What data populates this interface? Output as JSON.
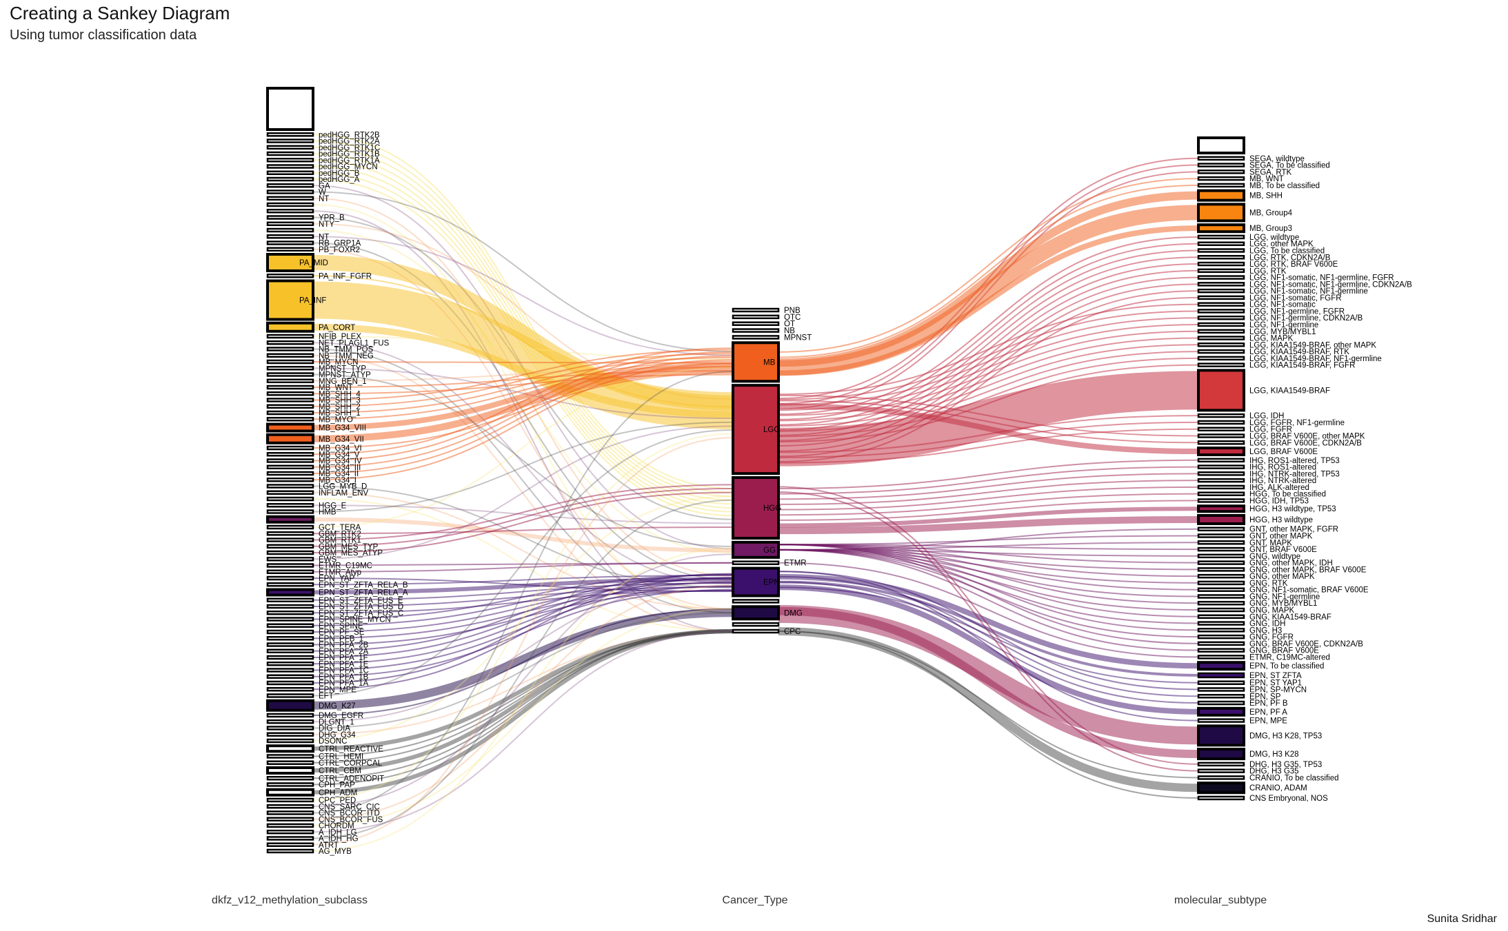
{
  "title": "Creating a Sankey Diagram",
  "subtitle": "Using tumor classification data",
  "caption": "Sunita Sridhar",
  "axes": [
    "dkfz_v12_methylation_subclass",
    "Cancer_Type",
    "molecular_subtype"
  ],
  "colors": {
    "PA": "#f7c12a",
    "MB": "#f05f1e",
    "LGG": "#c02a3e",
    "HGG": "#9b1d4e",
    "GG": "#6f1a63",
    "EPN": "#3b0f6c",
    "DMG": "#1f0a45",
    "OTHER": "#4a4a4a"
  },
  "chart_data": {
    "type": "sankey",
    "columns": [
      {
        "name": "dkfz_v12_methylation_subclass",
        "nodes": [
          {
            "label": "",
            "h": 60,
            "fill": "#ffffff"
          },
          {
            "label": "pedHGG_RTK2B",
            "h": 4
          },
          {
            "label": "pedHGG_RTK2A",
            "h": 4
          },
          {
            "label": "pedHGG_RTK1C",
            "h": 4
          },
          {
            "label": "pedHGG_RTK1B",
            "h": 4
          },
          {
            "label": "pedHGG_RTK1A",
            "h": 4
          },
          {
            "label": "pedHGG_MYCN",
            "h": 4
          },
          {
            "label": "pedHGG_B",
            "h": 4
          },
          {
            "label": "pedHGG_A",
            "h": 4
          },
          {
            "label": "GA",
            "h": 4
          },
          {
            "label": "W",
            "h": 4
          },
          {
            "label": "NT",
            "h": 4
          },
          {
            "label": "",
            "h": 4
          },
          {
            "label": "",
            "h": 4
          },
          {
            "label": "YPR_B",
            "h": 4
          },
          {
            "label": "NTY",
            "h": 4
          },
          {
            "label": "",
            "h": 4
          },
          {
            "label": "NT",
            "h": 4
          },
          {
            "label": "RB_GRP1A",
            "h": 4
          },
          {
            "label": "PB_FOXR2",
            "h": 4
          },
          {
            "label": "PA_MID",
            "h": 24,
            "fill": "#f7c12a"
          },
          {
            "label": "PA_INF_FGFR",
            "h": 4
          },
          {
            "label": "PA_INF",
            "h": 56,
            "fill": "#f7c12a"
          },
          {
            "label": "PA_CORT",
            "h": 12,
            "fill": "#f7c12a"
          },
          {
            "label": "NFIB_PLEX",
            "h": 4
          },
          {
            "label": "NET_PLAGL1_FUS",
            "h": 4
          },
          {
            "label": "NB_TMM_POS",
            "h": 4
          },
          {
            "label": "NB_TMM_NEG",
            "h": 4
          },
          {
            "label": "MB_MYCN",
            "h": 4
          },
          {
            "label": "MPNST_TYP",
            "h": 4
          },
          {
            "label": "MPNST_ATYP",
            "h": 4
          },
          {
            "label": "MNG_BEN_1",
            "h": 4
          },
          {
            "label": "MB_WNT",
            "h": 4
          },
          {
            "label": "MB_SHH_4",
            "h": 4
          },
          {
            "label": "MB_SHH_3",
            "h": 4
          },
          {
            "label": "MB_SHH_2",
            "h": 4
          },
          {
            "label": "MB_SHH_1",
            "h": 4
          },
          {
            "label": "MB_MYO",
            "h": 4
          },
          {
            "label": "MB_G34_VIII",
            "h": 10,
            "fill": "#f05f1e"
          },
          {
            "label": "MB_G34_VII",
            "h": 12,
            "fill": "#f05f1e"
          },
          {
            "label": "MB_G34_VI",
            "h": 4
          },
          {
            "label": "MB_G34_V",
            "h": 4
          },
          {
            "label": "MB_G34_IV",
            "h": 4
          },
          {
            "label": "MB_G34_III",
            "h": 4
          },
          {
            "label": "MB_G34_II",
            "h": 4
          },
          {
            "label": "MB_G34_I",
            "h": 4
          },
          {
            "label": "LGG_MYB_D",
            "h": 4
          },
          {
            "label": "INFLAM_ENV",
            "h": 4
          },
          {
            "label": "",
            "h": 4
          },
          {
            "label": "HGG_E",
            "h": 4
          },
          {
            "label": "HMB",
            "h": 4
          },
          {
            "label": "",
            "h": 8,
            "fill": "#6f1a63"
          },
          {
            "label": "GCT_TERA",
            "h": 4
          },
          {
            "label": "GBM_RTK2",
            "h": 4
          },
          {
            "label": "GBM_RTK1",
            "h": 4
          },
          {
            "label": "GBM_MES_TYP",
            "h": 4
          },
          {
            "label": "GBM_MES_ATYP",
            "h": 4
          },
          {
            "label": "EWS",
            "h": 4
          },
          {
            "label": "ETMR_C19MC",
            "h": 4
          },
          {
            "label": "ETMR_Atyp",
            "h": 4
          },
          {
            "label": "EPN_YAP",
            "h": 4
          },
          {
            "label": "EPN_ST_ZFTA_RELA_B",
            "h": 4
          },
          {
            "label": "EPN_ST_ZFTA_RELA_A",
            "h": 8,
            "fill": "#3b0f6c"
          },
          {
            "label": "EPN_ST_ZFTA_FUS_E",
            "h": 4
          },
          {
            "label": "EPN_ST_ZFTA_FUS_D",
            "h": 4
          },
          {
            "label": "EPN_ST_ZFTA_FUS_C",
            "h": 4
          },
          {
            "label": "EPN_SPINE_MYCN",
            "h": 4
          },
          {
            "label": "EPN_SPINE",
            "h": 4
          },
          {
            "label": "EPN_PF_SE",
            "h": 4
          },
          {
            "label": "EPN_PFB_1",
            "h": 4
          },
          {
            "label": "EPN_PFA_2B",
            "h": 4
          },
          {
            "label": "EPN_PFA_2A",
            "h": 4
          },
          {
            "label": "EPN_PFA_1F",
            "h": 4
          },
          {
            "label": "EPN_PFA_1E",
            "h": 4
          },
          {
            "label": "EPN_PFA_1C",
            "h": 4
          },
          {
            "label": "EPN_PFA_1B",
            "h": 4
          },
          {
            "label": "EPN_PFA_1A",
            "h": 4
          },
          {
            "label": "EPN_MPE",
            "h": 4
          },
          {
            "label": "EFT",
            "h": 4
          },
          {
            "label": "DMG_K27",
            "h": 14,
            "fill": "#1f0a45"
          },
          {
            "label": "DMG_EGFR",
            "h": 4
          },
          {
            "label": "DLGNT_1",
            "h": 4
          },
          {
            "label": "DIG_DIA",
            "h": 4
          },
          {
            "label": "DHG_G34",
            "h": 4
          },
          {
            "label": "DSONC",
            "h": 4
          },
          {
            "label": "CTRL_REACTIVE",
            "h": 8
          },
          {
            "label": "CTRL_HEMI",
            "h": 4
          },
          {
            "label": "CTRL_CORPCAL",
            "h": 4
          },
          {
            "label": "CTRL_CBM",
            "h": 8
          },
          {
            "label": "CTRL_ADENOPIT",
            "h": 4
          },
          {
            "label": "CPH_PAP",
            "h": 4
          },
          {
            "label": "CPH_ADM",
            "h": 8
          },
          {
            "label": "CPC_PED",
            "h": 4
          },
          {
            "label": "CNS_SARC_CIC",
            "h": 4
          },
          {
            "label": "CNS_BCOR_ITD",
            "h": 4
          },
          {
            "label": "CNS_BCOR_FUS",
            "h": 4
          },
          {
            "label": "CHORDM",
            "h": 4
          },
          {
            "label": "A_IDH_LG",
            "h": 4
          },
          {
            "label": "A_IDH_HG",
            "h": 4
          },
          {
            "label": "ATRT",
            "h": 4
          },
          {
            "label": "AG_MYB",
            "h": 4
          }
        ]
      },
      {
        "name": "Cancer_Type",
        "nodes": [
          {
            "label": "PNB",
            "h": 4
          },
          {
            "label": "OTC",
            "h": 4
          },
          {
            "label": "OT",
            "h": 4
          },
          {
            "label": "NB",
            "h": 4
          },
          {
            "label": "MPNST",
            "h": 4
          },
          {
            "label": "MB",
            "h": 56,
            "fill": "#f05f1e"
          },
          {
            "label": "LGG",
            "h": 128,
            "fill": "#c02a3e"
          },
          {
            "label": "HGG",
            "h": 88,
            "fill": "#9b1d4e"
          },
          {
            "label": "GG",
            "h": 22,
            "fill": "#6f1a63"
          },
          {
            "label": "ETMR",
            "h": 4
          },
          {
            "label": "EPN",
            "h": 40,
            "fill": "#3b0f6c"
          },
          {
            "label": "",
            "h": 4
          },
          {
            "label": "DMG",
            "h": 18,
            "fill": "#1f0a45"
          },
          {
            "label": "",
            "h": 4
          },
          {
            "label": "CPC",
            "h": 4
          }
        ]
      },
      {
        "name": "molecular_subtype",
        "nodes": [
          {
            "label": "",
            "h": 22,
            "fill": "#ffffff"
          },
          {
            "label": "SEGA, wildtype",
            "h": 4
          },
          {
            "label": "SEGA, To be classified",
            "h": 4
          },
          {
            "label": "SEGA, RTK",
            "h": 4
          },
          {
            "label": "MB, WNT",
            "h": 4
          },
          {
            "label": "MB, To be classified",
            "h": 4
          },
          {
            "label": "MB, SHH",
            "h": 14,
            "fill": "#f7850f"
          },
          {
            "label": "MB, Group4",
            "h": 24,
            "fill": "#f7850f"
          },
          {
            "label": "MB, Group3",
            "h": 10,
            "fill": "#f7850f"
          },
          {
            "label": "LGG, wildtype",
            "h": 4
          },
          {
            "label": "LGG, other MAPK",
            "h": 4
          },
          {
            "label": "LGG, To be classified",
            "h": 4
          },
          {
            "label": "LGG, RTK, CDKN2A/B",
            "h": 4
          },
          {
            "label": "LGG, RTK, BRAF V600E",
            "h": 4
          },
          {
            "label": "LGG, RTK",
            "h": 4
          },
          {
            "label": "LGG, NF1-somatic, NF1-germline, FGFR",
            "h": 4
          },
          {
            "label": "LGG, NF1-somatic, NF1-germline, CDKN2A/B",
            "h": 4
          },
          {
            "label": "LGG, NF1-somatic, NF1-germline",
            "h": 4
          },
          {
            "label": "LGG, NF1-somatic, FGFR",
            "h": 4
          },
          {
            "label": "LGG, NF1-somatic",
            "h": 4
          },
          {
            "label": "LGG, NF1-germline, FGFR",
            "h": 4
          },
          {
            "label": "LGG, NF1-germline, CDKN2A/B",
            "h": 4
          },
          {
            "label": "LGG, NF1-germline",
            "h": 4
          },
          {
            "label": "LGG, MYB/MYBL1",
            "h": 4
          },
          {
            "label": "LGG, MAPK",
            "h": 4
          },
          {
            "label": "LGG, KIAA1549-BRAF, other MAPK",
            "h": 4
          },
          {
            "label": "LGG, KIAA1549-BRAF, RTK",
            "h": 4
          },
          {
            "label": "LGG, KIAA1549-BRAF, NF1-germline",
            "h": 4
          },
          {
            "label": "LGG, KIAA1549-BRAF, FGFR",
            "h": 4
          },
          {
            "label": "LGG, KIAA1549-BRAF",
            "h": 58,
            "fill": "#d3383a"
          },
          {
            "label": "LGG, IDH",
            "h": 4
          },
          {
            "label": "LGG, FGFR, NF1-germline",
            "h": 4
          },
          {
            "label": "LGG, FGFR",
            "h": 4
          },
          {
            "label": "LGG, BRAF V600E, other MAPK",
            "h": 4
          },
          {
            "label": "LGG, BRAF V600E, CDKN2A/B",
            "h": 4
          },
          {
            "label": "LGG, BRAF V600E",
            "h": 10,
            "fill": "#c02a3e"
          },
          {
            "label": "IHG, ROS1-altered, TP53",
            "h": 4
          },
          {
            "label": "IHG, ROS1-altered",
            "h": 4
          },
          {
            "label": "IHG, NTRK-altered, TP53",
            "h": 4
          },
          {
            "label": "IHG, NTRK-altered",
            "h": 4
          },
          {
            "label": "IHG, ALK-altered",
            "h": 4
          },
          {
            "label": "HGG, To be classified",
            "h": 4
          },
          {
            "label": "HGG, IDH, TP53",
            "h": 4
          },
          {
            "label": "HGG, H3 wildtype, TP53",
            "h": 8,
            "fill": "#9b1d4e"
          },
          {
            "label": "HGG, H3 wildtype",
            "h": 12,
            "fill": "#9b1d4e"
          },
          {
            "label": "GNT, other MAPK, FGFR",
            "h": 4
          },
          {
            "label": "GNT, other MAPK",
            "h": 4
          },
          {
            "label": "GNT, MAPK",
            "h": 4
          },
          {
            "label": "GNT, BRAF V600E",
            "h": 4
          },
          {
            "label": "GNG, wildtype",
            "h": 4
          },
          {
            "label": "GNG, other MAPK, IDH",
            "h": 4
          },
          {
            "label": "GNG, other MAPK, BRAF V600E",
            "h": 4
          },
          {
            "label": "GNG, other MAPK",
            "h": 4
          },
          {
            "label": "GNG, RTK",
            "h": 4
          },
          {
            "label": "GNG, NF1-somatic, BRAF V600E",
            "h": 4
          },
          {
            "label": "GNG, NF1-germline",
            "h": 4
          },
          {
            "label": "GNG, MYB/MYBL1",
            "h": 4
          },
          {
            "label": "GNG, MAPK",
            "h": 4
          },
          {
            "label": "GNG, KIAA1549-BRAF",
            "h": 4
          },
          {
            "label": "GNG, IDH",
            "h": 4
          },
          {
            "label": "GNG, H3",
            "h": 4
          },
          {
            "label": "GNG, FGFR",
            "h": 4
          },
          {
            "label": "GNG, BRAF V600E, CDKN2A/B",
            "h": 4
          },
          {
            "label": "GNG, BRAF V600E",
            "h": 4
          },
          {
            "label": "ETMR, C19MC-altered",
            "h": 4
          },
          {
            "label": "EPN, To be classified",
            "h": 10,
            "fill": "#3b0f6c"
          },
          {
            "label": "EPN, ST ZFTA",
            "h": 6,
            "fill": "#3b0f6c"
          },
          {
            "label": "EPN, ST YAP1",
            "h": 4
          },
          {
            "label": "EPN, SP-MYCN",
            "h": 4
          },
          {
            "label": "EPN, SP",
            "h": 4
          },
          {
            "label": "EPN, PF B",
            "h": 4
          },
          {
            "label": "EPN, PF A",
            "h": 10,
            "fill": "#3b0f6c"
          },
          {
            "label": "EPN, MPE",
            "h": 4
          },
          {
            "label": "DMG, H3 K28, TP53",
            "h": 28,
            "fill": "#1f0a45"
          },
          {
            "label": "DMG, H3 K28",
            "h": 14,
            "fill": "#1f0a45"
          },
          {
            "label": "DHG, H3 G35, TP53",
            "h": 4
          },
          {
            "label": "DHG, H3 G35",
            "h": 4
          },
          {
            "label": "CRANIO, To be classified",
            "h": 4
          },
          {
            "label": "CRANIO, ADAM",
            "h": 14,
            "fill": "#0e0a1f"
          },
          {
            "label": "CNS Embryonal, NOS",
            "h": 4
          }
        ]
      }
    ]
  }
}
